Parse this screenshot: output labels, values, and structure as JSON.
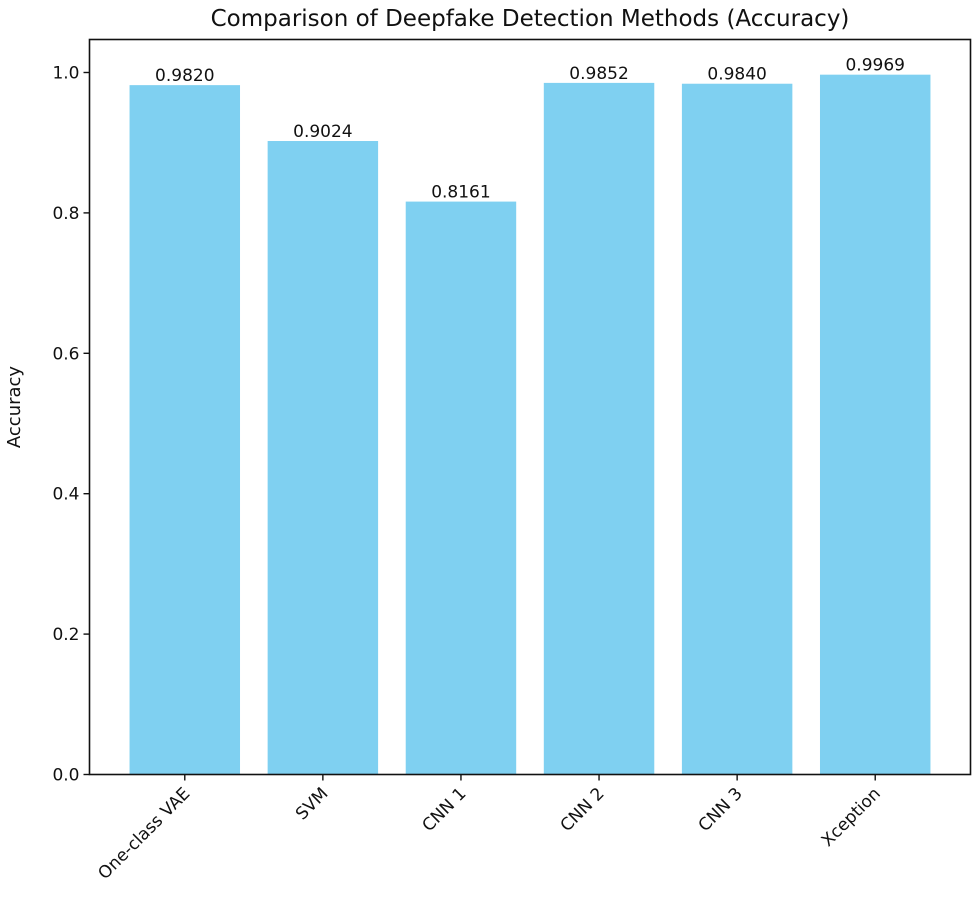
{
  "chart_data": {
    "type": "bar",
    "title": "Comparison of Deepfake Detection Methods (Accuracy)",
    "xlabel": "",
    "ylabel": "Accuracy",
    "categories": [
      "One-class VAE",
      "SVM",
      "CNN 1",
      "CNN 2",
      "CNN 3",
      "Xception"
    ],
    "values": [
      0.982,
      0.9024,
      0.8161,
      0.9852,
      0.984,
      0.9969
    ],
    "data_labels": [
      "0.9820",
      "0.9024",
      "0.8161",
      "0.9852",
      "0.9840",
      "0.9969"
    ],
    "yticks": [
      "0.0",
      "0.2",
      "0.4",
      "0.6",
      "0.8",
      "1.0"
    ],
    "ylim": [
      0,
      1.047
    ],
    "grid": false,
    "bar_color": "#7fd0f1"
  }
}
